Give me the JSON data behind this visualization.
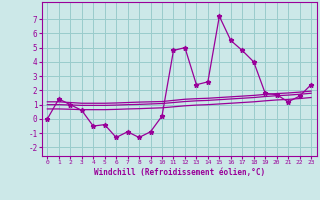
{
  "x": [
    0,
    1,
    2,
    3,
    4,
    5,
    6,
    7,
    8,
    9,
    10,
    11,
    12,
    13,
    14,
    15,
    16,
    17,
    18,
    19,
    20,
    21,
    22,
    23
  ],
  "y_main": [
    0,
    1.4,
    1.0,
    0.6,
    -0.5,
    -0.4,
    -1.3,
    -0.9,
    -1.3,
    -0.9,
    0.2,
    4.8,
    5.0,
    2.4,
    2.6,
    7.2,
    5.5,
    4.8,
    4.0,
    1.8,
    1.7,
    1.2,
    1.6,
    2.4
  ],
  "y_upper": [
    1.2,
    1.2,
    1.15,
    1.1,
    1.1,
    1.1,
    1.12,
    1.15,
    1.18,
    1.2,
    1.22,
    1.3,
    1.38,
    1.42,
    1.45,
    1.5,
    1.55,
    1.6,
    1.65,
    1.72,
    1.78,
    1.82,
    1.88,
    1.95
  ],
  "y_mid": [
    1.0,
    1.0,
    0.98,
    0.95,
    0.95,
    0.95,
    0.97,
    1.0,
    1.02,
    1.05,
    1.08,
    1.15,
    1.22,
    1.27,
    1.3,
    1.35,
    1.4,
    1.45,
    1.5,
    1.57,
    1.63,
    1.67,
    1.73,
    1.8
  ],
  "y_lower": [
    0.7,
    0.7,
    0.68,
    0.65,
    0.65,
    0.65,
    0.67,
    0.7,
    0.72,
    0.75,
    0.78,
    0.85,
    0.92,
    0.97,
    1.0,
    1.05,
    1.1,
    1.15,
    1.2,
    1.27,
    1.33,
    1.37,
    1.43,
    1.5
  ],
  "line_color": "#990099",
  "bg_color": "#cce8e8",
  "grid_color": "#99cccc",
  "xlabel": "Windchill (Refroidissement éolien,°C)",
  "ylim": [
    -2.6,
    8.2
  ],
  "xlim": [
    -0.5,
    23.5
  ],
  "yticks": [
    -2,
    -1,
    0,
    1,
    2,
    3,
    4,
    5,
    6,
    7
  ],
  "xticks": [
    0,
    1,
    2,
    3,
    4,
    5,
    6,
    7,
    8,
    9,
    10,
    11,
    12,
    13,
    14,
    15,
    16,
    17,
    18,
    19,
    20,
    21,
    22,
    23
  ]
}
